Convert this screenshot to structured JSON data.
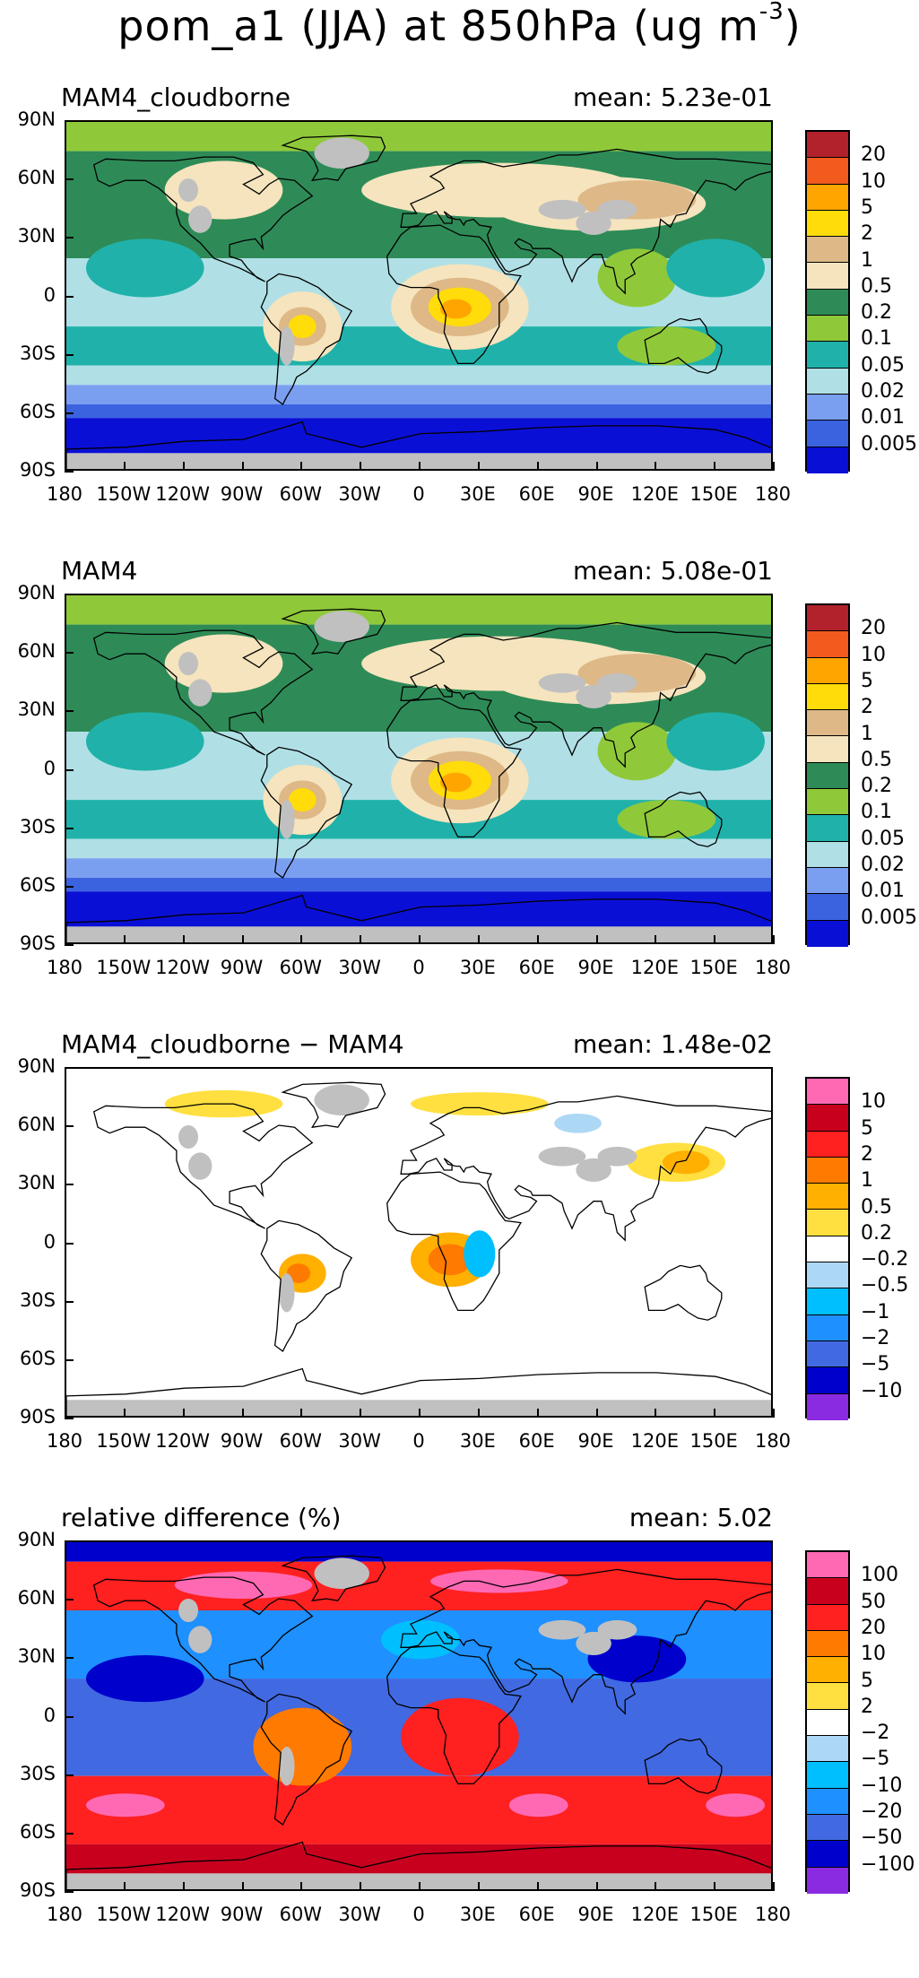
{
  "title": {
    "prefix": "pom_a1 (JJA) at 850hPa (ug m",
    "exp": "-3",
    "suffix": ")"
  },
  "lat_labels": [
    "90N",
    "60N",
    "30N",
    "0",
    "30S",
    "60S",
    "90S"
  ],
  "lon_labels": [
    "180",
    "150W",
    "120W",
    "90W",
    "60W",
    "30W",
    "0",
    "30E",
    "60E",
    "90E",
    "120E",
    "150E",
    "180"
  ],
  "land_color": "#c0c0c0",
  "panels": [
    {
      "title": "MAM4_cloudborne",
      "mean": "mean: 5.23e-01",
      "colorbar": {
        "colors": [
          "#b2222c",
          "#f25a1e",
          "#ffa500",
          "#ffdc0a",
          "#deb887",
          "#f5e4bd",
          "#2e8b57",
          "#8fc93a",
          "#20b2aa",
          "#b0e0e6",
          "#7b9ff0",
          "#3b63e0",
          "#0a0fd6"
        ],
        "labels": [
          "20",
          "10",
          "5",
          "2",
          "1",
          "0.5",
          "0.2",
          "0.1",
          "0.05",
          "0.02",
          "0.01",
          "0.005"
        ]
      }
    },
    {
      "title": "MAM4",
      "mean": "mean: 5.08e-01",
      "colorbar": {
        "colors": [
          "#b2222c",
          "#f25a1e",
          "#ffa500",
          "#ffdc0a",
          "#deb887",
          "#f5e4bd",
          "#2e8b57",
          "#8fc93a",
          "#20b2aa",
          "#b0e0e6",
          "#7b9ff0",
          "#3b63e0",
          "#0a0fd6"
        ],
        "labels": [
          "20",
          "10",
          "5",
          "2",
          "1",
          "0.5",
          "0.2",
          "0.1",
          "0.05",
          "0.02",
          "0.01",
          "0.005"
        ]
      }
    },
    {
      "title": "MAM4_cloudborne − MAM4",
      "mean": "mean: 1.48e-02",
      "colorbar": {
        "colors": [
          "#ff69b4",
          "#c8001e",
          "#ff2020",
          "#ff7a00",
          "#ffb000",
          "#ffe040",
          "#ffffff",
          "#add8f5",
          "#00bfff",
          "#1e90ff",
          "#4169e1",
          "#0000cd",
          "#8a2be2"
        ],
        "labels": [
          "10",
          "5",
          "2",
          "1",
          "0.5",
          "0.2",
          "−0.2",
          "−0.5",
          "−1",
          "−2",
          "−5",
          "−10"
        ]
      }
    },
    {
      "title": "relative difference (%)",
      "mean": "mean:  5.02",
      "colorbar": {
        "colors": [
          "#ff69b4",
          "#c8001e",
          "#ff2020",
          "#ff7a00",
          "#ffb000",
          "#ffe040",
          "#ffffff",
          "#add8f5",
          "#00bfff",
          "#1e90ff",
          "#4169e1",
          "#0000cd",
          "#8a2be2"
        ],
        "labels": [
          "100",
          "50",
          "20",
          "10",
          "5",
          "2",
          "−2",
          "−5",
          "−10",
          "−20",
          "−50",
          "−100"
        ]
      }
    }
  ]
}
